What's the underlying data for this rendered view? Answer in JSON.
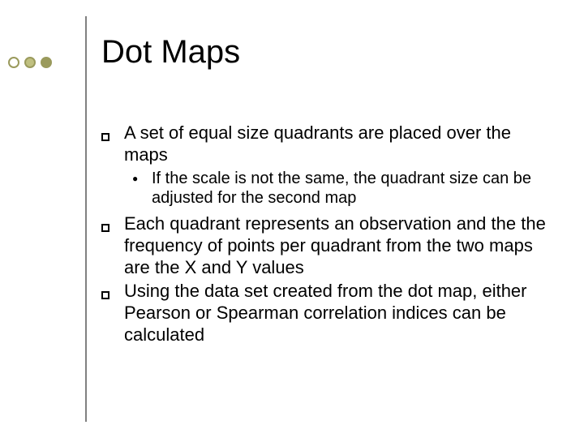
{
  "title": "Dot Maps",
  "decoration": {
    "dot_outline": "#9a9a5c",
    "dot_fill_1": "#ffffff",
    "dot_fill_2": "#c0c080",
    "dot_fill_3": "#9a9a5c",
    "dot_border_width": 2
  },
  "bullets": [
    {
      "text": "A set of equal size quadrants are placed over the maps",
      "subs": [
        {
          "text": "If the scale is not the same, the quadrant size can be adjusted for the second map"
        }
      ]
    },
    {
      "text": "Each quadrant represents an observation and the the frequency of points per quadrant from the two maps are the X and Y values",
      "subs": []
    },
    {
      "text": "Using the data set created from the dot map, either Pearson or Spearman correlation indices can be calculated",
      "subs": []
    }
  ],
  "style": {
    "background_color": "#ffffff",
    "text_color": "#000000",
    "vline_color": "#808080",
    "title_fontsize": 40,
    "body_fontsize": 22,
    "sub_fontsize": 20,
    "font_family": "Arial"
  }
}
